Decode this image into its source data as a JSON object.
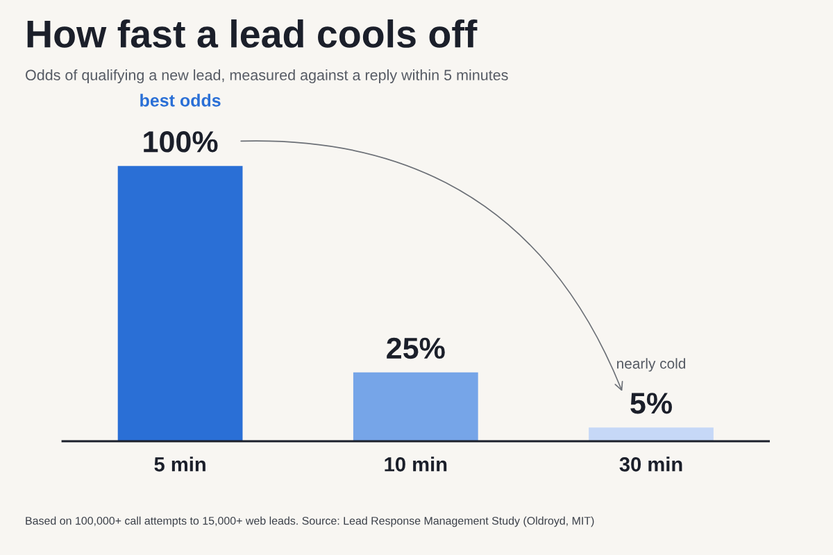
{
  "chart_data": {
    "type": "bar",
    "title": "How fast a lead cools off",
    "subtitle": "Odds of qualifying a new lead, measured against a reply within 5 minutes",
    "categories": [
      "5 min",
      "10 min",
      "30 min"
    ],
    "values": [
      100,
      25,
      5
    ],
    "value_labels": [
      "100%",
      "25%",
      "5%"
    ],
    "colors": [
      "#2a6fd6",
      "#76a5e8",
      "#c6d8f7"
    ],
    "annotations": [
      "best odds",
      "nearly cold",
      "Based on 100,000+ call attempts to 15,000+ web leads. Source: Lead Response Management Study (Oldroyd, MIT)"
    ],
    "grid": false,
    "legend": false
  }
}
